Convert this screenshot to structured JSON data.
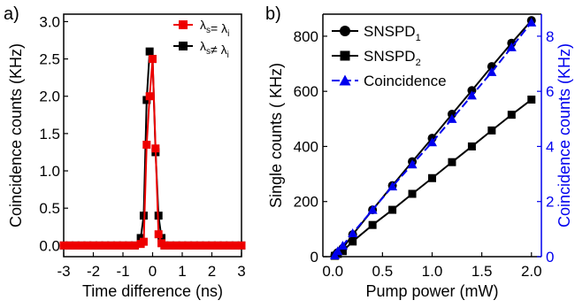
{
  "colors": {
    "red": "#ee0000",
    "black": "#000000",
    "blue": "#0000ee"
  },
  "chart_data": [
    {
      "panel_label": "a)",
      "type": "line",
      "xlabel": "Time difference  (ns)",
      "ylabel": "Coincidence counts (KHz)",
      "xlim": [
        -3,
        3
      ],
      "ylim": [
        -0.15,
        3.1
      ],
      "xticks": [
        "-3",
        "-2",
        "-1",
        "0",
        "1",
        "2",
        "3"
      ],
      "xtick_values": [
        -3,
        -2,
        -1,
        0,
        1,
        2,
        3
      ],
      "yticks": [
        "0.0",
        "0.5",
        "1.0",
        "1.5",
        "2.0",
        "2.5",
        "3.0"
      ],
      "ytick_values": [
        0,
        0.5,
        1.0,
        1.5,
        2.0,
        2.5,
        3.0
      ],
      "legend": {
        "position": "top-right"
      },
      "series": [
        {
          "name": "λs≠ λi",
          "legend_main": "λ",
          "legend_sub1": "s",
          "legend_mid": "≠ λ",
          "legend_sub2": "i",
          "color": "black",
          "marker": "square",
          "x": [
            -3.0,
            -2.8,
            -2.6,
            -2.4,
            -2.2,
            -2.0,
            -1.8,
            -1.6,
            -1.4,
            -1.2,
            -1.0,
            -0.8,
            -0.6,
            -0.4,
            -0.3,
            -0.2,
            -0.1,
            0.0,
            0.1,
            0.2,
            0.3,
            0.4,
            0.6,
            0.8,
            1.0,
            1.2,
            1.4,
            1.6,
            1.8,
            2.0,
            2.2,
            2.4,
            2.6,
            2.8,
            3.0
          ],
          "y": [
            0,
            0,
            0,
            0,
            0,
            0,
            0,
            0,
            0,
            0,
            0,
            0,
            0,
            0.1,
            0.4,
            1.95,
            2.6,
            2.5,
            1.25,
            0.4,
            0.1,
            0,
            0,
            0,
            0,
            0,
            0,
            0,
            0,
            0,
            0,
            0,
            0,
            0,
            0
          ]
        },
        {
          "name": "λs= λi",
          "legend_main": "λ",
          "legend_sub1": "s",
          "legend_mid": "= λ",
          "legend_sub2": "i",
          "color": "red",
          "marker": "square",
          "x": [
            -3.0,
            -2.8,
            -2.6,
            -2.4,
            -2.2,
            -2.0,
            -1.8,
            -1.6,
            -1.4,
            -1.2,
            -1.0,
            -0.8,
            -0.6,
            -0.4,
            -0.3,
            -0.2,
            -0.1,
            0.0,
            0.1,
            0.2,
            0.3,
            0.4,
            0.6,
            0.8,
            1.0,
            1.2,
            1.4,
            1.6,
            1.8,
            2.0,
            2.2,
            2.4,
            2.6,
            2.8,
            3.0
          ],
          "y": [
            0,
            0,
            0,
            0,
            0,
            0,
            0,
            0,
            0,
            0,
            0,
            0,
            0,
            0.02,
            0.05,
            1.35,
            2.0,
            2.5,
            1.3,
            0.15,
            0.03,
            0,
            0,
            0,
            0,
            0,
            0,
            0,
            0,
            0,
            0,
            0,
            0,
            0,
            0
          ]
        }
      ]
    },
    {
      "panel_label": "b)",
      "type": "line",
      "xlabel": "Pump power (mW)",
      "ylabel": "Single counts ( KHz)",
      "y2label": "Coincidence counts (KHz)",
      "xlim": [
        -0.1,
        2.1
      ],
      "ylim": [
        0,
        880
      ],
      "y2lim": [
        0,
        8.8
      ],
      "xticks": [
        "0.0",
        "0.5",
        "1.0",
        "1.5",
        "2.0"
      ],
      "xtick_values": [
        0,
        0.5,
        1.0,
        1.5,
        2.0
      ],
      "yticks": [
        "0",
        "200",
        "400",
        "600",
        "800"
      ],
      "ytick_values": [
        0,
        200,
        400,
        600,
        800
      ],
      "y2ticks": [
        "0",
        "2",
        "4",
        "6",
        "8"
      ],
      "y2tick_values": [
        0,
        2,
        4,
        6,
        8
      ],
      "legend": {
        "position": "top-left"
      },
      "series": [
        {
          "name": "SNSPD1",
          "legend_main": "SNSPD",
          "legend_sub": "1",
          "color": "black",
          "marker": "circle",
          "axis": "left",
          "x": [
            0.02,
            0.05,
            0.1,
            0.2,
            0.4,
            0.6,
            0.8,
            1.0,
            1.2,
            1.4,
            1.6,
            1.8,
            2.0
          ],
          "y": [
            5,
            15,
            30,
            80,
            170,
            258,
            345,
            430,
            517,
            603,
            690,
            775,
            857
          ]
        },
        {
          "name": "SNSPD2",
          "legend_main": "SNSPD",
          "legend_sub": "2",
          "color": "black",
          "marker": "square",
          "axis": "left",
          "x": [
            0.02,
            0.05,
            0.1,
            0.2,
            0.4,
            0.6,
            0.8,
            1.0,
            1.2,
            1.4,
            1.6,
            1.8,
            2.0
          ],
          "y": [
            3,
            10,
            20,
            55,
            115,
            170,
            228,
            285,
            343,
            400,
            458,
            515,
            570
          ]
        },
        {
          "name": "Coincidence",
          "legend_main": "Coincidence",
          "color": "blue",
          "marker": "triangle",
          "axis": "right",
          "dashed": true,
          "x": [
            0.02,
            0.05,
            0.1,
            0.2,
            0.4,
            0.6,
            0.8,
            1.0,
            1.2,
            1.4,
            1.6,
            1.8,
            2.0
          ],
          "y": [
            0.05,
            0.2,
            0.4,
            0.85,
            1.7,
            2.55,
            3.35,
            4.15,
            5.0,
            5.85,
            6.7,
            7.6,
            8.5
          ]
        }
      ]
    }
  ]
}
